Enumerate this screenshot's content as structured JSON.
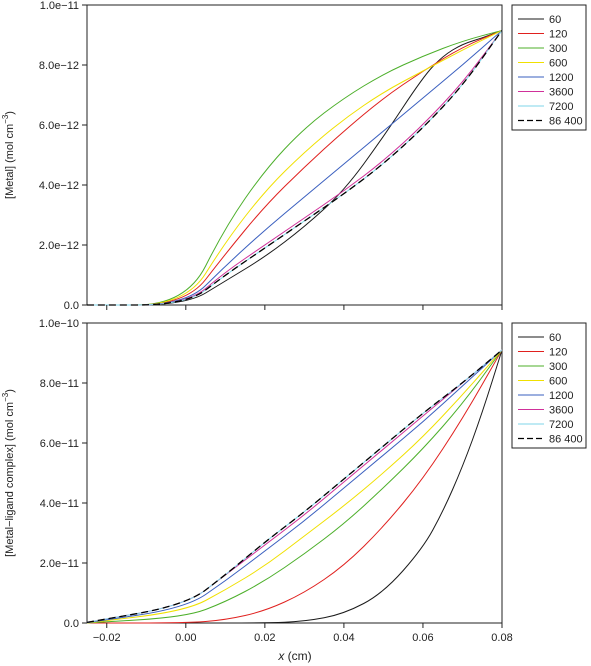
{
  "chart_data": [
    {
      "type": "line",
      "ylabel_main": "[Metal] (mol cm",
      "ylabel_unit_exp": "−3",
      "ylabel_tail": ")",
      "xlim": [
        -0.025,
        0.08
      ],
      "ylim": [
        0,
        1e-11
      ],
      "xticks": [
        -0.02,
        0.0,
        0.02,
        0.04,
        0.06,
        0.08
      ],
      "yticks": [
        0,
        2e-12,
        4e-12,
        6e-12,
        8e-12,
        1e-11
      ],
      "ytick_labels": [
        "0.0",
        "2.0e−12",
        "4.0e−12",
        "6.0e−12",
        "8.0e−12",
        "1.0e−11"
      ],
      "legend_position": "right",
      "series": [
        {
          "name": "60",
          "color": "#1a1a1a",
          "dash": false,
          "x": [
            -0.025,
            0.0,
            0.01,
            0.02,
            0.03,
            0.04,
            0.05,
            0.06,
            0.065,
            0.07,
            0.075,
            0.08
          ],
          "y": [
            0,
            0,
            8e-13,
            1.6e-12,
            2.6e-12,
            3.8e-12,
            5.6e-12,
            7.6e-12,
            8.3e-12,
            8.7e-12,
            8.9e-12,
            9.15e-12
          ]
        },
        {
          "name": "120",
          "color": "#e0201e",
          "dash": false,
          "x": [
            -0.025,
            0.0,
            0.01,
            0.02,
            0.03,
            0.04,
            0.05,
            0.06,
            0.07,
            0.08
          ],
          "y": [
            0,
            0,
            1.7e-12,
            3.3e-12,
            4.6e-12,
            5.8e-12,
            6.9e-12,
            7.8e-12,
            8.6e-12,
            9.15e-12
          ]
        },
        {
          "name": "300",
          "color": "#4caf2a",
          "dash": false,
          "x": [
            -0.025,
            0.0,
            0.01,
            0.02,
            0.03,
            0.04,
            0.05,
            0.06,
            0.07,
            0.08
          ],
          "y": [
            0,
            0,
            2.6e-12,
            4.5e-12,
            5.9e-12,
            6.9e-12,
            7.7e-12,
            8.3e-12,
            8.8e-12,
            9.15e-12
          ]
        },
        {
          "name": "600",
          "color": "#f0e000",
          "dash": false,
          "x": [
            -0.025,
            0.0,
            0.01,
            0.02,
            0.03,
            0.04,
            0.05,
            0.06,
            0.07,
            0.08
          ],
          "y": [
            0,
            0,
            2.1e-12,
            3.8e-12,
            5.1e-12,
            6.2e-12,
            7.1e-12,
            7.8e-12,
            8.5e-12,
            9.15e-12
          ]
        },
        {
          "name": "1200",
          "color": "#3a5fbf",
          "dash": false,
          "x": [
            -0.025,
            0.0,
            0.01,
            0.02,
            0.03,
            0.04,
            0.05,
            0.06,
            0.07,
            0.08
          ],
          "y": [
            0,
            0,
            1.3e-12,
            2.5e-12,
            3.6e-12,
            4.7e-12,
            5.8e-12,
            6.9e-12,
            8e-12,
            9.15e-12
          ]
        },
        {
          "name": "3600",
          "color": "#d0309a",
          "dash": false,
          "x": [
            -0.025,
            0.0,
            0.01,
            0.02,
            0.03,
            0.04,
            0.05,
            0.06,
            0.07,
            0.08
          ],
          "y": [
            0,
            0,
            1.1e-12,
            2e-12,
            2.9e-12,
            3.8e-12,
            4.8e-12,
            6e-12,
            7.4e-12,
            9.15e-12
          ]
        },
        {
          "name": "7200",
          "color": "#7fd6e8",
          "dash": false,
          "x": [
            -0.025,
            0.0,
            0.01,
            0.02,
            0.03,
            0.04,
            0.05,
            0.06,
            0.07,
            0.08
          ],
          "y": [
            0,
            0,
            1e-12,
            1.9e-12,
            2.8e-12,
            3.7e-12,
            4.7e-12,
            5.9e-12,
            7.3e-12,
            9.15e-12
          ]
        },
        {
          "name": "86 400",
          "color": "#000000",
          "dash": true,
          "x": [
            -0.025,
            0.0,
            0.01,
            0.02,
            0.03,
            0.04,
            0.05,
            0.06,
            0.07,
            0.08
          ],
          "y": [
            0,
            0,
            1e-12,
            1.9e-12,
            2.8e-12,
            3.7e-12,
            4.7e-12,
            5.9e-12,
            7.3e-12,
            9.15e-12
          ]
        }
      ]
    },
    {
      "type": "line",
      "ylabel_main": "[Metal−ligand complex] (mol cm",
      "ylabel_unit_exp": "−3",
      "ylabel_tail": ")",
      "xlabel_var": "x",
      "xlabel_unit": " (cm)",
      "xlim": [
        -0.025,
        0.08
      ],
      "ylim": [
        0,
        1e-10
      ],
      "xticks": [
        -0.02,
        0.0,
        0.02,
        0.04,
        0.06,
        0.08
      ],
      "xtick_labels": [
        "−0.02",
        "0.00",
        "0.02",
        "0.04",
        "0.06",
        "0.08"
      ],
      "yticks": [
        0,
        2e-11,
        4e-11,
        6e-11,
        8e-11,
        1e-10
      ],
      "ytick_labels": [
        "0.0",
        "2.0e−11",
        "4.0e−11",
        "6.0e−11",
        "8.0e−11",
        "1.0e−10"
      ],
      "legend_position": "right",
      "series": [
        {
          "name": "60",
          "color": "#1a1a1a",
          "dash": false,
          "x": [
            -0.025,
            0.0,
            0.02,
            0.03,
            0.04,
            0.05,
            0.06,
            0.065,
            0.07,
            0.075,
            0.08
          ],
          "y": [
            0,
            0,
            0,
            5e-13,
            3e-12,
            1e-11,
            2.5e-11,
            3.7e-11,
            5.2e-11,
            7e-11,
            9.1e-11
          ]
        },
        {
          "name": "120",
          "color": "#e0201e",
          "dash": false,
          "x": [
            -0.025,
            0.0,
            0.01,
            0.02,
            0.03,
            0.04,
            0.05,
            0.06,
            0.07,
            0.08
          ],
          "y": [
            0,
            0,
            1e-12,
            4e-12,
            1e-11,
            1.9e-11,
            3.2e-11,
            4.8e-11,
            6.8e-11,
            9.1e-11
          ]
        },
        {
          "name": "300",
          "color": "#4caf2a",
          "dash": false,
          "x": [
            -0.025,
            0.0,
            0.01,
            0.02,
            0.03,
            0.04,
            0.05,
            0.06,
            0.07,
            0.08
          ],
          "y": [
            0,
            2e-12,
            7e-12,
            1.4e-11,
            2.3e-11,
            3.3e-11,
            4.5e-11,
            5.8e-11,
            7.3e-11,
            9.1e-11
          ]
        },
        {
          "name": "600",
          "color": "#f0e000",
          "dash": false,
          "x": [
            -0.025,
            0.0,
            0.01,
            0.02,
            0.03,
            0.04,
            0.05,
            0.06,
            0.07,
            0.08
          ],
          "y": [
            0,
            4e-12,
            1.1e-11,
            1.9e-11,
            2.9e-11,
            3.9e-11,
            5e-11,
            6.2e-11,
            7.6e-11,
            9.1e-11
          ]
        },
        {
          "name": "1200",
          "color": "#3a5fbf",
          "dash": false,
          "x": [
            -0.025,
            0.0,
            0.01,
            0.02,
            0.03,
            0.04,
            0.05,
            0.06,
            0.07,
            0.08
          ],
          "y": [
            1e-13,
            5e-12,
            1.4e-11,
            2.4e-11,
            3.4e-11,
            4.5e-11,
            5.6e-11,
            6.7e-11,
            7.9e-11,
            9.1e-11
          ]
        },
        {
          "name": "3600",
          "color": "#d0309a",
          "dash": false,
          "x": [
            -0.025,
            0.0,
            0.01,
            0.02,
            0.03,
            0.04,
            0.05,
            0.06,
            0.07,
            0.08
          ],
          "y": [
            2e-13,
            6e-12,
            1.6e-11,
            2.6e-11,
            3.6e-11,
            4.7e-11,
            5.8e-11,
            6.9e-11,
            8e-11,
            9.1e-11
          ]
        },
        {
          "name": "7200",
          "color": "#7fd6e8",
          "dash": false,
          "x": [
            -0.025,
            0.0,
            0.01,
            0.02,
            0.03,
            0.04,
            0.05,
            0.06,
            0.07,
            0.08
          ],
          "y": [
            2e-13,
            6e-12,
            1.6e-11,
            2.7e-11,
            3.7e-11,
            4.8e-11,
            5.9e-11,
            7e-11,
            8e-11,
            9.1e-11
          ]
        },
        {
          "name": "86 400",
          "color": "#000000",
          "dash": true,
          "x": [
            -0.025,
            0.0,
            0.01,
            0.02,
            0.03,
            0.04,
            0.05,
            0.06,
            0.07,
            0.08
          ],
          "y": [
            2e-13,
            6e-12,
            1.6e-11,
            2.7e-11,
            3.7e-11,
            4.8e-11,
            5.9e-11,
            7e-11,
            8e-11,
            9.1e-11
          ]
        }
      ]
    }
  ]
}
